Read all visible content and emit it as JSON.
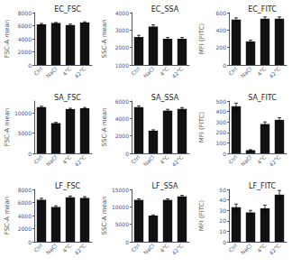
{
  "chart_data": [
    {
      "type": "bar",
      "title": "EC_FSC",
      "ylabel": "FSC-A mean",
      "categories": [
        "Ctrl",
        "NaCl",
        "4°C",
        "42°C"
      ],
      "values": [
        6200,
        6400,
        6100,
        6500
      ],
      "errors": [
        150,
        100,
        150,
        100
      ],
      "color": "#111111",
      "ylim": [
        0,
        8000
      ],
      "yticks": [
        0,
        2000,
        4000,
        6000,
        8000
      ],
      "grid": false
    },
    {
      "type": "bar",
      "title": "EC_SSA",
      "ylabel": "SSC-A mean",
      "categories": [
        "Ctrl",
        "NaCl",
        "4°C",
        "42°C"
      ],
      "values": [
        2600,
        3200,
        2500,
        2500
      ],
      "errors": [
        100,
        100,
        80,
        80
      ],
      "color": "#111111",
      "ylim": [
        1000,
        4000
      ],
      "yticks": [
        1000,
        2000,
        3000,
        4000
      ],
      "grid": false
    },
    {
      "type": "bar",
      "title": "EC_FITC",
      "ylabel": "MFI (FITC)",
      "categories": [
        "Ctrl",
        "NaCl",
        "4°C",
        "42°C"
      ],
      "values": [
        520,
        270,
        530,
        530
      ],
      "errors": [
        20,
        15,
        20,
        20
      ],
      "color": "#111111",
      "ylim": [
        0,
        600
      ],
      "yticks": [
        0,
        200,
        400,
        600
      ],
      "grid": false
    },
    {
      "type": "bar",
      "title": "SA_FSC",
      "ylabel": "FSC-A mean",
      "categories": [
        "Ctrl",
        "NaCl",
        "4°C",
        "42°C"
      ],
      "values": [
        11500,
        7500,
        11000,
        11200
      ],
      "errors": [
        200,
        200,
        200,
        200
      ],
      "color": "#111111",
      "ylim": [
        0,
        13000
      ],
      "yticks": [
        0,
        5000,
        10000
      ],
      "grid": false
    },
    {
      "type": "bar",
      "title": "SA_SSA",
      "ylabel": "SSC-A mean",
      "categories": [
        "Ctrl",
        "NaCl",
        "4°C",
        "42°C"
      ],
      "values": [
        5300,
        2600,
        4900,
        5100
      ],
      "errors": [
        150,
        100,
        150,
        150
      ],
      "color": "#111111",
      "ylim": [
        0,
        6000
      ],
      "yticks": [
        0,
        2000,
        4000,
        6000
      ],
      "grid": false
    },
    {
      "type": "bar",
      "title": "SA_FITC",
      "ylabel": "MFI (FITC)",
      "categories": [
        "Ctrl",
        "NaCl",
        "4°C",
        "42°C"
      ],
      "values": [
        450,
        30,
        280,
        320
      ],
      "errors": [
        30,
        5,
        20,
        20
      ],
      "color": "#111111",
      "ylim": [
        0,
        500
      ],
      "yticks": [
        0,
        100,
        200,
        300,
        400,
        500
      ],
      "grid": false
    },
    {
      "type": "bar",
      "title": "LF_FSC",
      "ylabel": "FSC-A mean",
      "categories": [
        "Ctrl",
        "NaCl",
        "4°C",
        "42°C"
      ],
      "values": [
        6400,
        5300,
        6800,
        6700
      ],
      "errors": [
        250,
        200,
        200,
        200
      ],
      "color": "#111111",
      "ylim": [
        0,
        8000
      ],
      "yticks": [
        0,
        2000,
        4000,
        6000,
        8000
      ],
      "grid": false
    },
    {
      "type": "bar",
      "title": "LF_SSA",
      "ylabel": "SSC-A mean",
      "categories": [
        "Ctrl",
        "NaCl",
        "4°C",
        "42°C"
      ],
      "values": [
        12000,
        7500,
        12000,
        13000
      ],
      "errors": [
        300,
        200,
        300,
        300
      ],
      "color": "#111111",
      "ylim": [
        0,
        15000
      ],
      "yticks": [
        0,
        5000,
        10000,
        15000
      ],
      "grid": false
    },
    {
      "type": "bar",
      "title": "LF_FITC",
      "ylabel": "MFI (FITC)",
      "categories": [
        "Ctrl",
        "NaCl",
        "4°C",
        "42°C"
      ],
      "values": [
        33,
        28,
        32,
        45
      ],
      "errors": [
        3,
        2,
        3,
        4
      ],
      "color": "#111111",
      "ylim": [
        0,
        50
      ],
      "yticks": [
        0,
        10,
        20,
        30,
        40,
        50
      ],
      "grid": false
    }
  ]
}
